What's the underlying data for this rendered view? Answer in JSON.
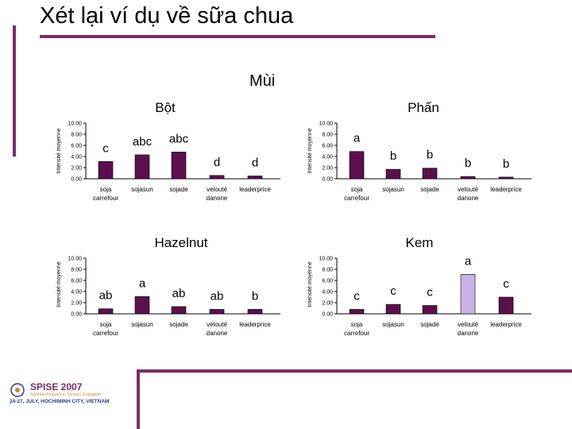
{
  "slide": {
    "title": "Xét lại ví dụ về sữa chua",
    "heading": "Mùi"
  },
  "colors": {
    "accent": "#7b2d6a",
    "bar": "#5c0f4d",
    "bar_highlight": "#c9b3e6"
  },
  "logo": {
    "title": "SPISE 2007",
    "subtitle": "Summer Program in Sensory Evaluation",
    "date": "24-27, JULY, HOCHIMINH CITY, VIETNAM"
  },
  "chart_data": [
    {
      "type": "bar",
      "title": "Bột",
      "ylabel": "Intensité moyenne",
      "ylim": [
        0,
        10
      ],
      "yticks": [
        "0.00",
        "2.00",
        "4.00",
        "6.00",
        "8.00",
        "10.00"
      ],
      "categories": [
        "soja carrefour",
        "sojasun",
        "sojade",
        "velouté danone",
        "leaderprice"
      ],
      "values": [
        3.1,
        4.3,
        4.8,
        0.6,
        0.5
      ],
      "letters": [
        "c",
        "abc",
        "abc",
        "d",
        "d"
      ]
    },
    {
      "type": "bar",
      "title": "Phấn",
      "ylabel": "Intensité moyenne",
      "ylim": [
        0,
        10
      ],
      "yticks": [
        "0.00",
        "2.00",
        "4.00",
        "6.00",
        "8.00",
        "10.00"
      ],
      "categories": [
        "soja carrefour",
        "sojasun",
        "sojade",
        "velouté danone",
        "leaderprice"
      ],
      "values": [
        4.9,
        1.7,
        1.9,
        0.4,
        0.3
      ],
      "letters": [
        "a",
        "b",
        "b",
        "b",
        "b"
      ]
    },
    {
      "type": "bar",
      "title": "Hazelnut",
      "ylabel": "Intensité moyenne",
      "ylim": [
        0,
        10
      ],
      "yticks": [
        "0.00",
        "2.00",
        "4.00",
        "6.00",
        "8.00",
        "10.00"
      ],
      "categories": [
        "soja carrefour",
        "sojasun",
        "sojade",
        "velouté danone",
        "leaderprice"
      ],
      "values": [
        0.9,
        3.1,
        1.3,
        0.8,
        0.8
      ],
      "letters": [
        "ab",
        "a",
        "ab",
        "ab",
        "b"
      ]
    },
    {
      "type": "bar",
      "title": "Kem",
      "ylabel": "Intensité moyenne",
      "ylim": [
        0,
        10
      ],
      "yticks": [
        "0.00",
        "2.00",
        "4.00",
        "6.00",
        "8.00",
        "10.00"
      ],
      "categories": [
        "soja carrefour",
        "sojasun",
        "sojade",
        "velouté danone",
        "leaderprice"
      ],
      "values": [
        0.8,
        1.7,
        1.5,
        7.1,
        3.0
      ],
      "letters": [
        "c",
        "c",
        "c",
        "a",
        "c"
      ]
    }
  ]
}
